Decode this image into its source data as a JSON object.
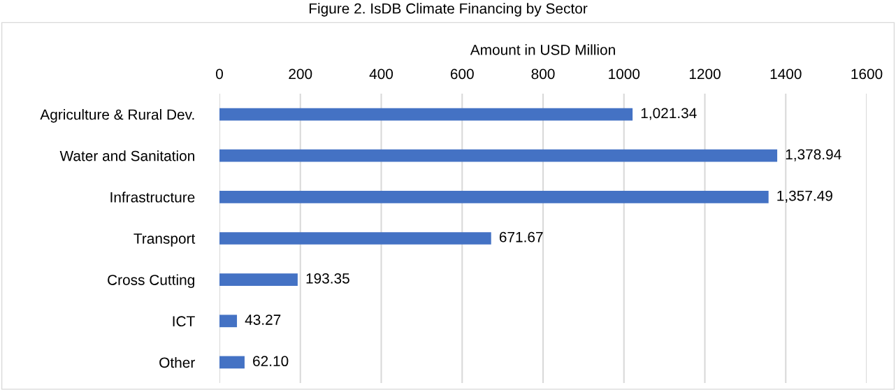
{
  "chart_data": {
    "type": "bar",
    "orientation": "horizontal",
    "title": "Figure 2. IsDB Climate Financing by Sector",
    "xlabel": "Amount in USD Million",
    "categories": [
      "Agriculture & Rural Dev.",
      "Water and Sanitation",
      "Infrastructure",
      "Transport",
      "Cross Cutting",
      "ICT",
      "Other"
    ],
    "values": [
      1021.34,
      1378.94,
      1357.49,
      671.67,
      193.35,
      43.27,
      62.1
    ],
    "value_labels": [
      "1,021.34",
      "1,378.94",
      "1,357.49",
      "671.67",
      "193.35",
      "43.27",
      "62.10"
    ],
    "color": "#4472c4",
    "xlim": [
      0,
      1600
    ],
    "xticks": [
      0,
      200,
      400,
      600,
      800,
      1000,
      1200,
      1400,
      1600
    ],
    "grid": "x",
    "legend": false
  }
}
